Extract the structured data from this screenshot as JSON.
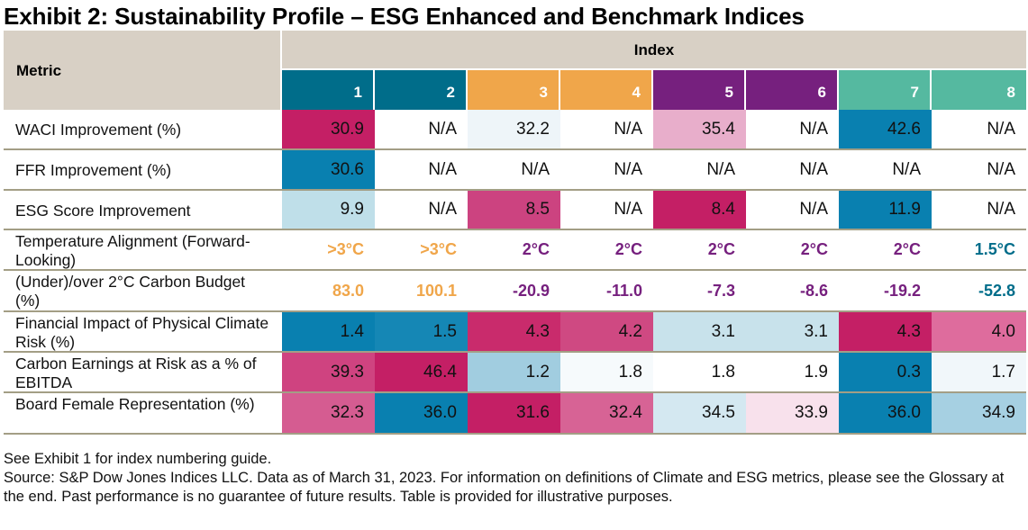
{
  "title": "Exhibit 2: Sustainability Profile – ESG Enhanced and Benchmark Indices",
  "header": {
    "metric_label": "Metric",
    "index_label": "Index",
    "indices": [
      {
        "label": "1",
        "color": "#006d8a"
      },
      {
        "label": "2",
        "color": "#006d8a"
      },
      {
        "label": "3",
        "color": "#f0a64a"
      },
      {
        "label": "4",
        "color": "#f0a64a"
      },
      {
        "label": "5",
        "color": "#76207e"
      },
      {
        "label": "6",
        "color": "#76207e"
      },
      {
        "label": "7",
        "color": "#55b9a0"
      },
      {
        "label": "8",
        "color": "#55b9a0"
      }
    ]
  },
  "rows": [
    {
      "metric": "WACI Improvement (%)",
      "style": "heat",
      "values": [
        "30.9",
        "N/A",
        "32.2",
        "N/A",
        "35.4",
        "N/A",
        "42.6",
        "N/A"
      ],
      "colors": [
        "#c41f65",
        "#ffffff",
        "#eef5f9",
        "#ffffff",
        "#e8aecb",
        "#ffffff",
        "#0980b0",
        "#ffffff"
      ]
    },
    {
      "metric": "FFR Improvement (%)",
      "style": "heat",
      "values": [
        "30.6",
        "N/A",
        "N/A",
        "N/A",
        "N/A",
        "N/A",
        "N/A",
        "N/A"
      ],
      "colors": [
        "#0980b0",
        "#ffffff",
        "#ffffff",
        "#ffffff",
        "#ffffff",
        "#ffffff",
        "#ffffff",
        "#ffffff"
      ]
    },
    {
      "metric": "ESG Score Improvement",
      "style": "heat",
      "values": [
        "9.9",
        "N/A",
        "8.5",
        "N/A",
        "8.4",
        "N/A",
        "11.9",
        "N/A"
      ],
      "colors": [
        "#bfdfe9",
        "#ffffff",
        "#cc4380",
        "#ffffff",
        "#c41f65",
        "#ffffff",
        "#0980b0",
        "#ffffff"
      ]
    },
    {
      "metric": "Temperature Alignment (Forward-Looking)",
      "style": "text",
      "values": [
        ">3°C",
        ">3°C",
        "2°C",
        "2°C",
        "2°C",
        "2°C",
        "2°C",
        "1.5°C"
      ],
      "text_colors": [
        "#f0a64a",
        "#f0a64a",
        "#76207e",
        "#76207e",
        "#76207e",
        "#76207e",
        "#76207e",
        "#006d8a"
      ]
    },
    {
      "metric": "(Under)/over 2°C Carbon Budget (%)",
      "style": "text",
      "values": [
        "83.0",
        "100.1",
        "-20.9",
        "-11.0",
        "-7.3",
        "-8.6",
        "-19.2",
        "-52.8"
      ],
      "text_colors": [
        "#f0a64a",
        "#f0a64a",
        "#76207e",
        "#76207e",
        "#76207e",
        "#76207e",
        "#76207e",
        "#006d8a"
      ]
    },
    {
      "metric": "Financial Impact of Physical Climate Risk (%)",
      "style": "heat",
      "values": [
        "1.4",
        "1.5",
        "4.3",
        "4.2",
        "3.1",
        "3.1",
        "4.3",
        "4.0"
      ],
      "colors": [
        "#0980b0",
        "#1587b5",
        "#c92b6c",
        "#cf4982",
        "#c8e2eb",
        "#c8e2eb",
        "#c41f65",
        "#de6c9d"
      ]
    },
    {
      "metric": "Carbon Earnings at Risk as a % of EBITDA",
      "style": "heat",
      "values": [
        "39.3",
        "46.4",
        "1.2",
        "1.8",
        "1.8",
        "1.9",
        "0.3",
        "1.7"
      ],
      "colors": [
        "#cf4380",
        "#c41f65",
        "#a1cde0",
        "#f6fafc",
        "#ffffff",
        "#ffffff",
        "#0980b0",
        "#f1f7fa"
      ]
    },
    {
      "metric": "Board Female Representation (%)",
      "style": "heat",
      "values": [
        "32.3",
        "36.0",
        "31.6",
        "32.4",
        "34.5",
        "33.9",
        "36.0",
        "34.9"
      ],
      "colors": [
        "#d55c91",
        "#0980b0",
        "#c41f65",
        "#d76395",
        "#d4e8f1",
        "#f8e1ec",
        "#0980b0",
        "#a6d0e2"
      ]
    }
  ],
  "footer": {
    "note": "See Exhibit 1 for index numbering guide.",
    "source": "Source: S&P Dow Jones Indices LLC. Data as of March 31, 2023. For information on definitions of Climate and ESG metrics, please see the Glossary at the end. Past performance is no guarantee of future results. Table is provided for illustrative purposes."
  }
}
